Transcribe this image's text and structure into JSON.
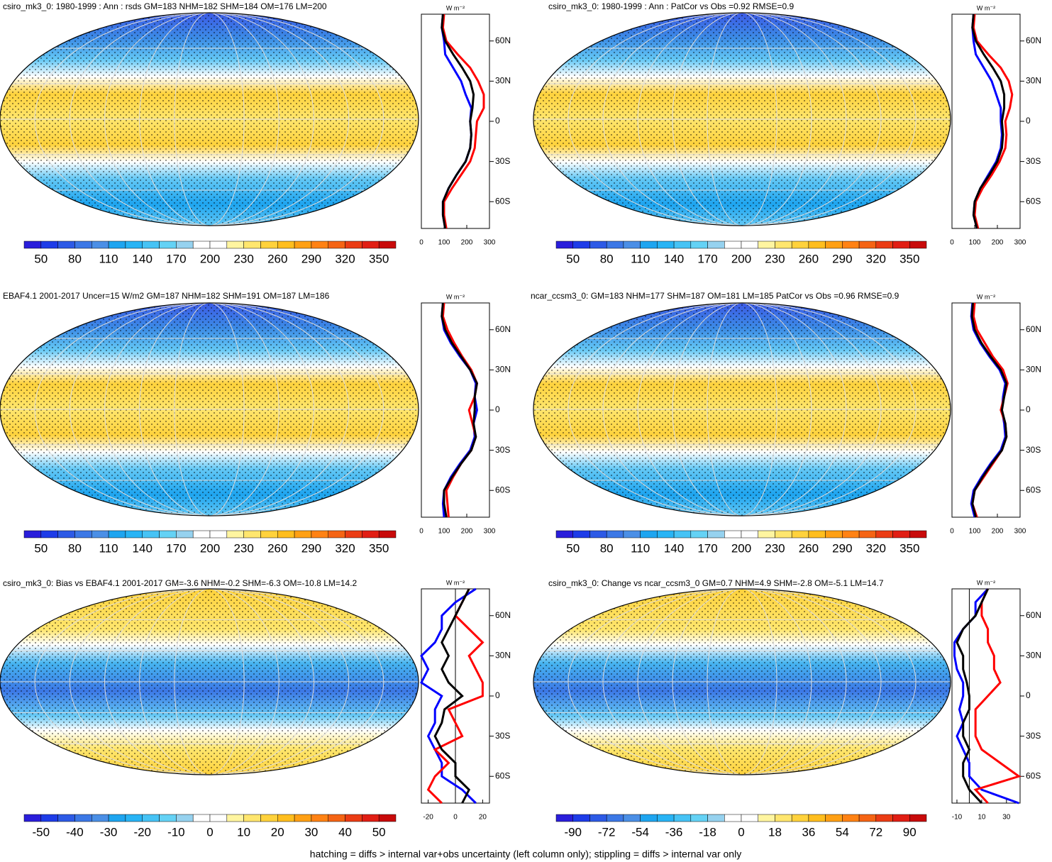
{
  "colors": [
    "#2a1edb",
    "#1e3ce8",
    "#2d5ae6",
    "#3c78e6",
    "#4b8fe6",
    "#1ea5f0",
    "#28b4f5",
    "#46c3f5",
    "#64d2f5",
    "#96d2ef",
    "#ffffff",
    "#ffffff",
    "#fff5a0",
    "#ffe66e",
    "#ffd23c",
    "#ffbe1e",
    "#ffa014",
    "#ff8214",
    "#f56414",
    "#eb3c14",
    "#e11e14",
    "#c80a0a"
  ],
  "footer": "hatching = diffs > internal var+obs uncertainty (left column only); stippling = diffs > internal var only",
  "panels": [
    {
      "title": "csiro_mk3_0: 1980-1999 : Ann : rsds GM=183 NHM=182 SHM=184 OM=176 LM=200",
      "colorbar": {
        "lim": [
          35,
          365
        ],
        "ticks": [
          50,
          80,
          110,
          140,
          170,
          200,
          230,
          260,
          290,
          320,
          350
        ]
      },
      "profile": {
        "type": "line",
        "unit": "W m⁻²",
        "xlim": [
          0,
          300
        ],
        "xticks": [
          0,
          100,
          200,
          300
        ],
        "ylim": [
          -80,
          80
        ],
        "yticks": [
          {
            "value": 60,
            "label": "60N"
          },
          {
            "value": 30,
            "label": "30N"
          },
          0,
          {
            "value": -30,
            "label": "30S"
          },
          {
            "value": -60,
            "label": "60S"
          }
        ],
        "lat": [
          -80,
          -70,
          -60,
          -50,
          -40,
          -30,
          -20,
          -10,
          0,
          10,
          20,
          30,
          40,
          50,
          60,
          70,
          80
        ],
        "series": [
          {
            "color": "#0000ff",
            "values": [
              105,
              95,
              95,
              120,
              155,
              195,
              215,
              220,
              215,
              220,
              195,
              175,
              140,
              105,
              100,
              90,
              95
            ]
          },
          {
            "color": "#ff0000",
            "values": [
              110,
              100,
              100,
              135,
              175,
              215,
              235,
              240,
              245,
              275,
              275,
              250,
              215,
              160,
              110,
              95,
              100
            ]
          },
          {
            "color": "#000000",
            "values": [
              105,
              95,
              95,
              120,
              155,
              195,
              215,
              220,
              215,
              225,
              230,
              215,
              180,
              140,
              105,
              90,
              95
            ]
          }
        ]
      }
    },
    {
      "title": "csiro_mk3_0: 1980-1999 : Ann : PatCor vs Obs =0.92 RMSE=0.9",
      "colorbar": {
        "lim": [
          35,
          365
        ],
        "ticks": [
          50,
          80,
          110,
          140,
          170,
          200,
          230,
          260,
          290,
          320,
          350
        ]
      },
      "profile": {
        "type": "line",
        "unit": "W m⁻²",
        "xlim": [
          0,
          300
        ],
        "xticks": [
          0,
          100,
          200,
          300
        ],
        "ylim": [
          -80,
          80
        ],
        "yticks": [
          {
            "value": 60,
            "label": "60N"
          },
          {
            "value": 30,
            "label": "30N"
          },
          0,
          {
            "value": -30,
            "label": "30S"
          },
          {
            "value": -60,
            "label": "60S"
          }
        ],
        "lat": [
          -80,
          -70,
          -60,
          -50,
          -40,
          -30,
          -20,
          -10,
          0,
          10,
          20,
          30,
          40,
          50,
          60,
          70,
          80
        ],
        "series": [
          {
            "color": "#0000ff",
            "values": [
              110,
              95,
              100,
              125,
              160,
              195,
              215,
              220,
              215,
              215,
              195,
              175,
              140,
              105,
              95,
              90,
              95
            ]
          },
          {
            "color": "#ff0000",
            "values": [
              115,
              100,
              105,
              135,
              175,
              210,
              235,
              240,
              235,
              255,
              265,
              250,
              215,
              160,
              110,
              95,
              100
            ]
          },
          {
            "color": "#000000",
            "values": [
              110,
              95,
              100,
              125,
              165,
              200,
              220,
              225,
              220,
              230,
              230,
              215,
              180,
              140,
              105,
              90,
              95
            ]
          }
        ]
      }
    },
    {
      "title": "EBAF4.1 2001-2017 Uncer=15 W/m2 GM=187 NHM=182 SHM=191 OM=187 LM=186",
      "colorbar": {
        "lim": [
          35,
          365
        ],
        "ticks": [
          50,
          80,
          110,
          140,
          170,
          200,
          230,
          260,
          290,
          320,
          350
        ]
      },
      "profile": {
        "type": "line",
        "unit": "W m⁻²",
        "xlim": [
          0,
          300
        ],
        "xticks": [
          0,
          100,
          200,
          300
        ],
        "ylim": [
          -80,
          80
        ],
        "yticks": [
          {
            "value": 60,
            "label": "60N"
          },
          {
            "value": 30,
            "label": "30N"
          },
          0,
          {
            "value": -30,
            "label": "30S"
          },
          {
            "value": -60,
            "label": "60S"
          }
        ],
        "lat": [
          -80,
          -70,
          -60,
          -50,
          -40,
          -30,
          -20,
          -10,
          0,
          10,
          20,
          30,
          40,
          50,
          60,
          70,
          80
        ],
        "series": [
          {
            "color": "#0000ff",
            "values": [
              100,
              95,
              100,
              130,
              170,
              215,
              235,
              230,
              245,
              235,
              240,
              215,
              170,
              130,
              100,
              90,
              95
            ]
          },
          {
            "color": "#ff0000",
            "values": [
              120,
              115,
              110,
              140,
              175,
              220,
              240,
              225,
              210,
              235,
              245,
              220,
              180,
              145,
              115,
              95,
              100
            ]
          },
          {
            "color": "#000000",
            "values": [
              110,
              100,
              100,
              135,
              175,
              220,
              240,
              230,
              235,
              235,
              245,
              215,
              175,
              135,
              105,
              90,
              95
            ]
          }
        ]
      }
    },
    {
      "title": "ncar_ccsm3_0: GM=183 NHM=177 SHM=187 OM=181 LM=185 PatCor vs Obs =0.96 RMSE=0.9",
      "colorbar": {
        "lim": [
          35,
          365
        ],
        "ticks": [
          50,
          80,
          110,
          140,
          170,
          200,
          230,
          260,
          290,
          320,
          350
        ]
      },
      "profile": {
        "type": "line",
        "unit": "W m⁻²",
        "xlim": [
          0,
          300
        ],
        "xticks": [
          0,
          100,
          200,
          300
        ],
        "ylim": [
          -80,
          80
        ],
        "yticks": [
          {
            "value": 60,
            "label": "60N"
          },
          {
            "value": 30,
            "label": "30N"
          },
          0,
          {
            "value": -30,
            "label": "30S"
          },
          {
            "value": -60,
            "label": "60S"
          }
        ],
        "lat": [
          -80,
          -70,
          -60,
          -50,
          -40,
          -30,
          -20,
          -10,
          0,
          10,
          20,
          30,
          40,
          50,
          60,
          70,
          80
        ],
        "series": [
          {
            "color": "#0000ff",
            "values": [
              100,
              85,
              95,
              130,
              170,
              215,
              235,
              230,
              220,
              225,
              235,
              210,
              165,
              125,
              95,
              85,
              90
            ]
          },
          {
            "color": "#ff0000",
            "values": [
              110,
              90,
              100,
              140,
              180,
              220,
              240,
              235,
              215,
              230,
              245,
              225,
              180,
              145,
              110,
              95,
              100
            ]
          },
          {
            "color": "#000000",
            "values": [
              105,
              90,
              100,
              135,
              175,
              220,
              240,
              235,
              220,
              230,
              240,
              215,
              170,
              130,
              100,
              88,
              92
            ]
          }
        ]
      }
    },
    {
      "title": "csiro_mk3_0: Bias vs EBAF4.1 2001-2017 GM=-3.6 NHM=-0.2 SHM=-6.3 OM=-10.8 LM=14.2",
      "colorbar": {
        "lim": [
          -55,
          55
        ],
        "ticks": [
          -50,
          -40,
          -30,
          -20,
          -10,
          0,
          10,
          20,
          30,
          40,
          50
        ]
      },
      "profile": {
        "type": "line",
        "unit": "W m⁻²",
        "xlim": [
          -25,
          25
        ],
        "xticks": [
          -20,
          0,
          20
        ],
        "ylim": [
          -80,
          80
        ],
        "yticks": [
          {
            "value": 60,
            "label": "60N"
          },
          {
            "value": 30,
            "label": "30N"
          },
          0,
          {
            "value": -30,
            "label": "30S"
          },
          {
            "value": -60,
            "label": "60S"
          }
        ],
        "lat": [
          -80,
          -70,
          -60,
          -50,
          -40,
          -30,
          -20,
          -10,
          0,
          10,
          20,
          30,
          40,
          50,
          60,
          70,
          80
        ],
        "series": [
          {
            "color": "#0000ff",
            "values": [
              15,
              5,
              -10,
              -10,
              -15,
              -20,
              -15,
              -15,
              -10,
              -25,
              -20,
              -25,
              -15,
              -10,
              -10,
              0,
              15
            ]
          },
          {
            "color": "#ff0000",
            "values": [
              -10,
              -20,
              -15,
              -5,
              -15,
              5,
              0,
              -5,
              20,
              20,
              15,
              10,
              20,
              10,
              0,
              5,
              10
            ]
          },
          {
            "color": "#000000",
            "values": [
              5,
              10,
              0,
              0,
              -10,
              -15,
              -10,
              -8,
              5,
              -5,
              -10,
              -5,
              -10,
              -5,
              0,
              5,
              10
            ]
          }
        ]
      }
    },
    {
      "title": "csiro_mk3_0: Change vs ncar_ccsm3_0 GM=0.7 NHM=4.9 SHM=-2.8 OM=-5.1 LM=14.7",
      "colorbar": {
        "lim": [
          -99,
          99
        ],
        "ticks": [
          -90,
          -72,
          -54,
          -36,
          -18,
          0,
          18,
          36,
          54,
          72,
          90
        ]
      },
      "profile": {
        "type": "line",
        "unit": "W m⁻²",
        "xlim": [
          -14,
          41
        ],
        "xticks": [
          -10,
          10,
          30
        ],
        "ylim": [
          -80,
          80
        ],
        "yticks": [
          {
            "value": 60,
            "label": "60N"
          },
          {
            "value": 30,
            "label": "30N"
          },
          0,
          {
            "value": -30,
            "label": "30S"
          },
          {
            "value": -60,
            "label": "60S"
          }
        ],
        "lat": [
          -80,
          -70,
          -60,
          -50,
          -40,
          -30,
          -20,
          -10,
          0,
          10,
          20,
          30,
          40,
          50,
          60,
          70,
          80
        ],
        "series": [
          {
            "color": "#0000ff",
            "values": [
              40,
              10,
              0,
              0,
              -5,
              -10,
              -5,
              -8,
              -5,
              -5,
              -10,
              -12,
              -12,
              -5,
              5,
              5,
              15
            ]
          },
          {
            "color": "#ff0000",
            "values": [
              15,
              5,
              40,
              25,
              10,
              5,
              5,
              5,
              15,
              25,
              20,
              20,
              15,
              15,
              10,
              10,
              15
            ]
          },
          {
            "color": "#000000",
            "values": [
              10,
              0,
              -5,
              -5,
              0,
              -5,
              -5,
              0,
              0,
              -2,
              -5,
              -5,
              -10,
              -5,
              5,
              10,
              15
            ]
          }
        ]
      }
    }
  ]
}
